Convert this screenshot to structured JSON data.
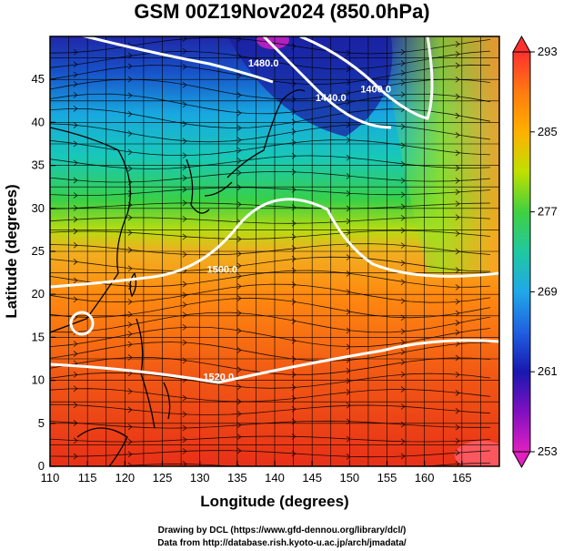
{
  "title": "GSM 00Z19Nov2024 (850.0hPa)",
  "axes": {
    "xlabel": "Longitude (degrees)",
    "ylabel": "Latitude (degrees)",
    "xlim": [
      110,
      170
    ],
    "ylim": [
      0,
      50
    ],
    "xticks": [
      "110",
      "115",
      "120",
      "125",
      "130",
      "135",
      "140",
      "145",
      "150",
      "155",
      "160",
      "165"
    ],
    "yticks": [
      "0",
      "5",
      "10",
      "15",
      "20",
      "25",
      "30",
      "35",
      "40",
      "45"
    ]
  },
  "colorbar": {
    "labels": [
      "293",
      "285",
      "277",
      "269",
      "261",
      "253"
    ],
    "range": [
      253,
      293
    ],
    "colors": [
      "#ff3030",
      "#ff7a10",
      "#ffb000",
      "#c0e000",
      "#40d040",
      "#20c8a0",
      "#20a8e8",
      "#2060e0",
      "#1818b0",
      "#8010c0",
      "#e020c0"
    ]
  },
  "contours": [
    {
      "label": "1480.0",
      "lon": 138.5,
      "lat": 46.5
    },
    {
      "label": "1440.0",
      "lon": 147.5,
      "lat": 42.5
    },
    {
      "label": "1400.0",
      "lon": 153.5,
      "lat": 43.5
    },
    {
      "label": "1500.0",
      "lon": 133.0,
      "lat": 22.5
    },
    {
      "label": "1520.0",
      "lon": 132.5,
      "lat": 10.0
    }
  ],
  "credits": {
    "line1": "Drawing by DCL (https://www.gfd-dennou.org/library/dcl/)",
    "line2": "Data from http://database.rish.kyoto-u.ac.jp/arch/jmadata/"
  }
}
